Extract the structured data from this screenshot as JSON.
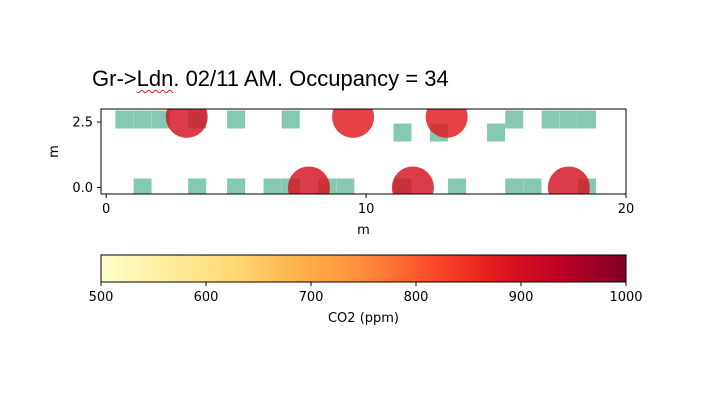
{
  "title": {
    "prefix": "Gr->",
    "marked": "Ldn",
    "suffix": ". 02/11 AM. Occupancy = 34"
  },
  "chart_data": {
    "type": "scatter",
    "xlabel": "m",
    "ylabel": "m",
    "xlim": [
      -0.2,
      20
    ],
    "ylim": [
      -0.25,
      3.0
    ],
    "xticks": [
      0,
      10,
      20
    ],
    "xtick_labels": [
      "0",
      "10",
      "20"
    ],
    "yticks": [
      0.0,
      2.5
    ],
    "ytick_labels": [
      "0.0",
      "2.5"
    ],
    "grid": false,
    "seat_color": "#5cb795",
    "sensor_color": "#c8102e",
    "seats": [
      {
        "x": 0.7,
        "y": 2.6
      },
      {
        "x": 1.4,
        "y": 2.6
      },
      {
        "x": 2.1,
        "y": 2.6
      },
      {
        "x": 3.5,
        "y": 2.6
      },
      {
        "x": 5.0,
        "y": 2.6
      },
      {
        "x": 7.1,
        "y": 2.6
      },
      {
        "x": 11.4,
        "y": 2.1
      },
      {
        "x": 12.8,
        "y": 2.1
      },
      {
        "x": 15.0,
        "y": 2.1
      },
      {
        "x": 15.7,
        "y": 2.6
      },
      {
        "x": 17.1,
        "y": 2.6
      },
      {
        "x": 17.8,
        "y": 2.6
      },
      {
        "x": 18.5,
        "y": 2.6
      },
      {
        "x": 1.4,
        "y": 0.0
      },
      {
        "x": 3.5,
        "y": 0.0
      },
      {
        "x": 5.0,
        "y": 0.0
      },
      {
        "x": 6.4,
        "y": 0.0
      },
      {
        "x": 7.1,
        "y": 0.0
      },
      {
        "x": 8.5,
        "y": 0.0
      },
      {
        "x": 9.2,
        "y": 0.0
      },
      {
        "x": 11.4,
        "y": 0.0
      },
      {
        "x": 13.5,
        "y": 0.0
      },
      {
        "x": 15.7,
        "y": 0.0
      },
      {
        "x": 16.4,
        "y": 0.0
      },
      {
        "x": 18.5,
        "y": 0.0
      }
    ],
    "sensors": [
      {
        "x": 3.1,
        "y": 2.7,
        "co2": 900
      },
      {
        "x": 9.5,
        "y": 2.7,
        "co2": 880
      },
      {
        "x": 13.1,
        "y": 2.7,
        "co2": 880
      },
      {
        "x": 7.8,
        "y": 0.0,
        "co2": 900
      },
      {
        "x": 11.8,
        "y": 0.0,
        "co2": 900
      },
      {
        "x": 17.8,
        "y": 0.0,
        "co2": 900
      }
    ],
    "colorbar": {
      "label": "CO2 (ppm)",
      "min": 500,
      "max": 1000,
      "ticks": [
        500,
        600,
        700,
        800,
        900,
        1000
      ],
      "tick_labels": [
        "500",
        "600",
        "700",
        "800",
        "900",
        "1000"
      ],
      "colormap": "YlOrRd",
      "stops": [
        "#ffffcc",
        "#ffeda0",
        "#fed976",
        "#feb24c",
        "#fd8d3c",
        "#fc4e2a",
        "#e31a1c",
        "#bd0026",
        "#800026"
      ]
    }
  }
}
